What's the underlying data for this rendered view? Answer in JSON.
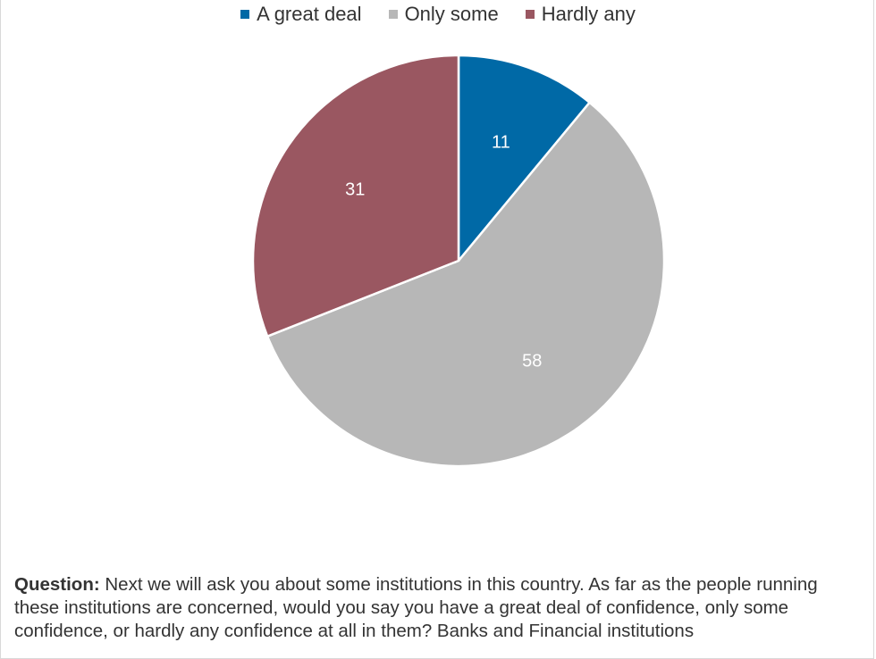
{
  "chart_data": {
    "type": "pie",
    "categories": [
      "A great deal",
      "Only some",
      "Hardly any"
    ],
    "values": [
      11,
      58,
      31
    ],
    "colors": [
      "#0069A6",
      "#B7B7B7",
      "#9A5761"
    ],
    "legend_position": "top-center",
    "start_angle": "12 o'clock, clockwise"
  },
  "footer": {
    "question_label": "Question:",
    "question_text": "Next we will ask you about some institutions in this country. As far as the people running these institutions are concerned, would you say you have a great deal of confidence, only some confidence, or hardly any confidence at all in them? Banks and Financial institutions"
  }
}
